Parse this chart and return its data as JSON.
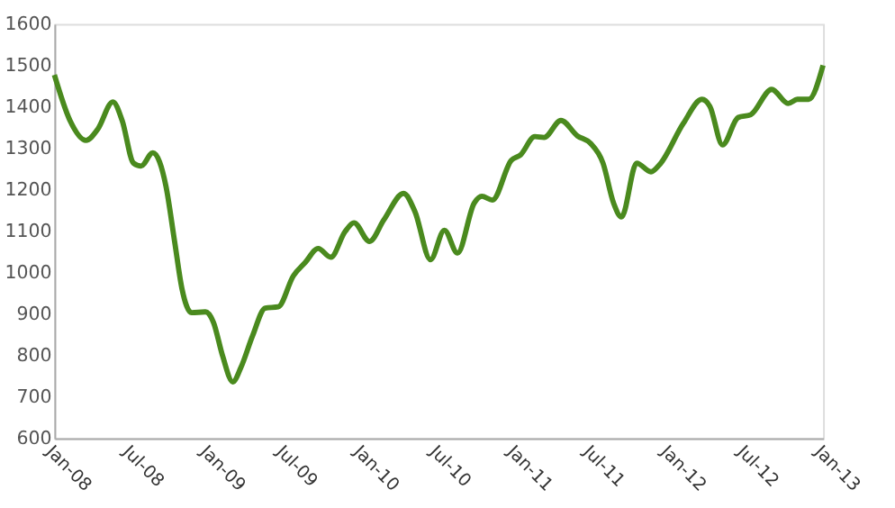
{
  "chart_data": {
    "type": "line",
    "x": [
      "2008-01-01",
      "2008-02-07",
      "2008-03-16",
      "2008-04-13",
      "2008-05-19",
      "2008-06-10",
      "2008-07-07",
      "2008-07-25",
      "2008-08-22",
      "2008-09-07",
      "2008-09-22",
      "2008-10-13",
      "2008-10-30",
      "2008-11-22",
      "2008-12-25",
      "2009-01-13",
      "2009-02-04",
      "2009-02-28",
      "2009-03-19",
      "2009-04-16",
      "2009-05-16",
      "2009-06-16",
      "2009-07-22",
      "2009-08-19",
      "2009-09-19",
      "2009-10-19",
      "2009-11-22",
      "2009-12-13",
      "2010-01-19",
      "2010-02-22",
      "2010-04-10",
      "2010-05-07",
      "2010-06-13",
      "2010-07-16",
      "2010-08-16",
      "2010-09-25",
      "2010-10-13",
      "2010-11-07",
      "2010-12-22",
      "2011-01-13",
      "2011-02-16",
      "2011-03-10",
      "2011-04-19",
      "2011-05-28",
      "2011-06-28",
      "2011-07-28",
      "2011-08-22",
      "2011-09-10",
      "2011-10-16",
      "2011-11-19",
      "2011-12-10",
      "2012-02-04",
      "2012-03-19",
      "2012-04-07",
      "2012-05-07",
      "2012-06-13",
      "2012-07-13",
      "2012-09-01",
      "2012-10-10",
      "2012-11-01",
      "2012-11-28",
      "2013-01-01"
    ],
    "series": [
      {
        "color": "#4a8a1e",
        "values": [
          1477,
          1367,
          1319,
          1346,
          1412,
          1367,
          1264,
          1257,
          1289,
          1267,
          1209,
          1073,
          962,
          903,
          905,
          880,
          798,
          736,
          770,
          847,
          914,
          917,
          992,
          1024,
          1058,
          1037,
          1099,
          1120,
          1075,
          1127,
          1191,
          1147,
          1031,
          1102,
          1047,
          1168,
          1184,
          1175,
          1271,
          1284,
          1328,
          1326,
          1367,
          1330,
          1312,
          1264,
          1168,
          1134,
          1264,
          1243,
          1261,
          1360,
          1418,
          1401,
          1308,
          1374,
          1381,
          1442,
          1408,
          1418,
          1418,
          1500
        ]
      }
    ],
    "xlim": [
      "2008-01-01",
      "2013-01-01"
    ],
    "xticks": [
      {
        "value": "2008-01-01",
        "label": "Jan-08"
      },
      {
        "value": "2008-07-01",
        "label": "Jul-08"
      },
      {
        "value": "2009-01-01",
        "label": "Jan-09"
      },
      {
        "value": "2009-07-01",
        "label": "Jul-09"
      },
      {
        "value": "2010-01-01",
        "label": "Jan-10"
      },
      {
        "value": "2010-07-01",
        "label": "Jul-10"
      },
      {
        "value": "2011-01-01",
        "label": "Jan-11"
      },
      {
        "value": "2011-07-01",
        "label": "Jul-11"
      },
      {
        "value": "2012-01-01",
        "label": "Jan-12"
      },
      {
        "value": "2012-07-01",
        "label": "Jul-12"
      },
      {
        "value": "2013-01-01",
        "label": "Jan-13"
      }
    ],
    "ylim": [
      600,
      1600
    ],
    "yticks": [
      600,
      700,
      800,
      900,
      1000,
      1100,
      1200,
      1300,
      1400,
      1500,
      1600
    ],
    "grid": false,
    "line_style": "solid",
    "marker": "none"
  }
}
